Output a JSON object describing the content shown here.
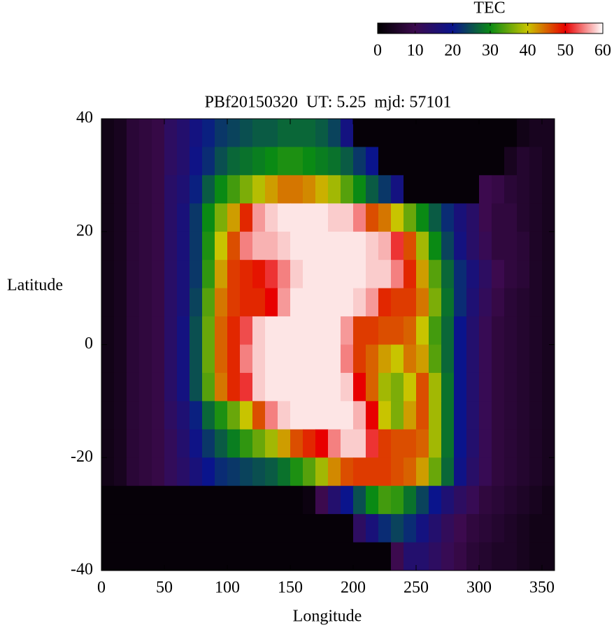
{
  "chart_data": {
    "type": "heatmap",
    "title": "PBf20150320  UT: 5.25  mjd: 57101",
    "xlabel": "Longitude",
    "ylabel": "Latitude",
    "x": [
      5,
      15,
      25,
      35,
      45,
      55,
      65,
      75,
      85,
      95,
      105,
      115,
      125,
      135,
      145,
      155,
      165,
      175,
      185,
      195,
      205,
      215,
      225,
      235,
      245,
      255,
      265,
      275,
      285,
      295,
      305,
      315,
      325,
      335,
      345,
      355
    ],
    "y": [
      37.5,
      32.5,
      27.5,
      22.5,
      17.5,
      12.5,
      7.5,
      2.5,
      -2.5,
      -7.5,
      -12.5,
      -17.5,
      -22.5,
      -27.5,
      -32.5,
      -37.5
    ],
    "z": [
      [
        3,
        4,
        7,
        8,
        9,
        13,
        15,
        18,
        21,
        23,
        24,
        25,
        26,
        26,
        27,
        27,
        27,
        26,
        24,
        18,
        1,
        1,
        1,
        1,
        1,
        1,
        1,
        1,
        1,
        1,
        1,
        1,
        1,
        3,
        4,
        4
      ],
      [
        3,
        4,
        7,
        8,
        9,
        13,
        15,
        19,
        22,
        25,
        27,
        28,
        29,
        30,
        31,
        31,
        30,
        29,
        28,
        26,
        23,
        20,
        1,
        1,
        1,
        1,
        1,
        1,
        1,
        1,
        1,
        1,
        4,
        6,
        5,
        4
      ],
      [
        3,
        4,
        7,
        8,
        9,
        14,
        16,
        21,
        26,
        30,
        33,
        36,
        39,
        42,
        44,
        44,
        43,
        41,
        38,
        34,
        30,
        26,
        23,
        18,
        1,
        1,
        1,
        1,
        1,
        1,
        10,
        9,
        7,
        6,
        5,
        4
      ],
      [
        3,
        4,
        7,
        8,
        9,
        14,
        17,
        23,
        30,
        36,
        42,
        48,
        56,
        58,
        59,
        59,
        59,
        59,
        58,
        58,
        55,
        46,
        44,
        40,
        35,
        30,
        26,
        22,
        17,
        14,
        10,
        8,
        8,
        6,
        5,
        4
      ],
      [
        3,
        4,
        7,
        8,
        9,
        14,
        17,
        23,
        31,
        40,
        46,
        55,
        57,
        57,
        58,
        59,
        59,
        59,
        59,
        59,
        59,
        58,
        57,
        52,
        46,
        38,
        30,
        24,
        18,
        14,
        11,
        8,
        8,
        7,
        5,
        4
      ],
      [
        3,
        4,
        7,
        8,
        9,
        14,
        17,
        23,
        32,
        42,
        47,
        48,
        49,
        52,
        55,
        58,
        59,
        59,
        59,
        59,
        59,
        58,
        58,
        55,
        48,
        42,
        34,
        27,
        22,
        17,
        13,
        10,
        8,
        7,
        5,
        4
      ],
      [
        3,
        4,
        7,
        8,
        9,
        14,
        17,
        24,
        34,
        44,
        47,
        48,
        48,
        50,
        56,
        59,
        59,
        59,
        59,
        59,
        58,
        56,
        48,
        47,
        47,
        44,
        36,
        28,
        22,
        16,
        12,
        9,
        7,
        6,
        5,
        4
      ],
      [
        3,
        4,
        7,
        8,
        9,
        14,
        18,
        25,
        35,
        45,
        48,
        53,
        58,
        59,
        59,
        59,
        59,
        59,
        59,
        56,
        47,
        47,
        46,
        46,
        45,
        40,
        33,
        27,
        20,
        15,
        11,
        8,
        7,
        6,
        5,
        4
      ],
      [
        3,
        4,
        7,
        8,
        9,
        14,
        18,
        25,
        35,
        45,
        48,
        55,
        58,
        59,
        59,
        59,
        59,
        59,
        59,
        55,
        47,
        45,
        42,
        40,
        44,
        42,
        34,
        27,
        20,
        15,
        11,
        8,
        7,
        6,
        5,
        4
      ],
      [
        3,
        4,
        7,
        8,
        9,
        14,
        18,
        25,
        34,
        44,
        48,
        52,
        58,
        59,
        59,
        59,
        59,
        59,
        59,
        58,
        50,
        45,
        38,
        36,
        40,
        46,
        38,
        28,
        20,
        15,
        11,
        8,
        7,
        6,
        5,
        4
      ],
      [
        3,
        4,
        7,
        8,
        9,
        13,
        16,
        21,
        27,
        31,
        35,
        40,
        46,
        55,
        58,
        59,
        59,
        59,
        59,
        59,
        57,
        50,
        40,
        36,
        42,
        46,
        38,
        28,
        20,
        15,
        11,
        8,
        7,
        6,
        5,
        4
      ],
      [
        3,
        4,
        7,
        8,
        9,
        12,
        15,
        19,
        23,
        26,
        29,
        32,
        35,
        38,
        42,
        46,
        48,
        50,
        55,
        58,
        58,
        52,
        47,
        46,
        46,
        45,
        38,
        28,
        20,
        15,
        11,
        8,
        7,
        6,
        5,
        4
      ],
      [
        3,
        4,
        7,
        8,
        9,
        12,
        14,
        17,
        20,
        22,
        23,
        24,
        25,
        26,
        28,
        31,
        34,
        38,
        43,
        46,
        47,
        47,
        47,
        46,
        45,
        42,
        35,
        27,
        19,
        14,
        11,
        8,
        7,
        6,
        5,
        4
      ],
      [
        1,
        1,
        1,
        1,
        1,
        1,
        1,
        1,
        1,
        1,
        1,
        1,
        1,
        1,
        1,
        1,
        2,
        10,
        15,
        20,
        25,
        30,
        33,
        32,
        28,
        24,
        20,
        16,
        13,
        11,
        8,
        7,
        6,
        5,
        4,
        3
      ],
      [
        1,
        1,
        1,
        1,
        1,
        1,
        1,
        1,
        1,
        1,
        1,
        1,
        1,
        1,
        1,
        1,
        1,
        1,
        1,
        1,
        13,
        17,
        22,
        24,
        22,
        18,
        15,
        12,
        10,
        8,
        7,
        6,
        5,
        4,
        3,
        3
      ],
      [
        1,
        1,
        1,
        1,
        1,
        1,
        1,
        1,
        1,
        1,
        1,
        1,
        1,
        1,
        1,
        1,
        1,
        1,
        1,
        1,
        1,
        1,
        1,
        10,
        15,
        15,
        13,
        11,
        9,
        7,
        6,
        5,
        5,
        4,
        3,
        3
      ]
    ],
    "xlim": [
      0,
      360
    ],
    "ylim": [
      -40,
      40
    ],
    "xticks": [
      0,
      50,
      100,
      150,
      200,
      250,
      300,
      350
    ],
    "yticks": [
      -40,
      -20,
      0,
      20,
      40
    ],
    "colormap": [
      "#000000",
      "#3c0a4e",
      "#0a148c",
      "#0a8a14",
      "#c8c400",
      "#e80000",
      "#ffffff"
    ],
    "colorbar": {
      "label": "TEC",
      "lim": [
        0,
        60
      ],
      "ticks": [
        0,
        10,
        20,
        30,
        40,
        50,
        60
      ]
    }
  }
}
